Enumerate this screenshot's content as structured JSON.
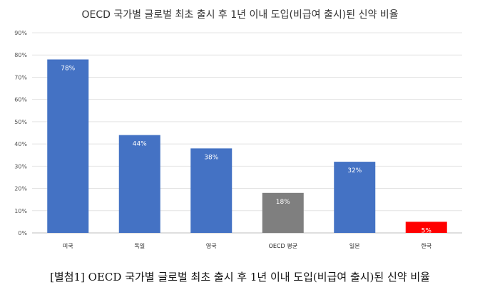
{
  "chart_data": {
    "type": "bar",
    "title": "OECD 국가별 글로벌 최초 출시 후 1년 이내 도입(비급여 출시)된 신약 비율",
    "categories": [
      "미국",
      "독일",
      "영국",
      "OECD 평균",
      "일본",
      "한국"
    ],
    "values": [
      78,
      44,
      38,
      18,
      32,
      5
    ],
    "data_labels": [
      "78%",
      "44%",
      "38%",
      "18%",
      "32%",
      "5%"
    ],
    "bar_colors": [
      "#4472C4",
      "#4472C4",
      "#4472C4",
      "#7F7F7F",
      "#4472C4",
      "#FF0000"
    ],
    "yticks": [
      "0%",
      "10%",
      "20%",
      "30%",
      "40%",
      "50%",
      "60%",
      "70%",
      "80%",
      "90%"
    ],
    "ylim": [
      0,
      90
    ],
    "xlabel": "",
    "ylabel": "",
    "grid": true,
    "legend": "none"
  },
  "caption": "[별첨1] OECD 국가별 글로벌 최초 출시 후 1년 이내 도입(비급여 출시)된 신약 비율"
}
